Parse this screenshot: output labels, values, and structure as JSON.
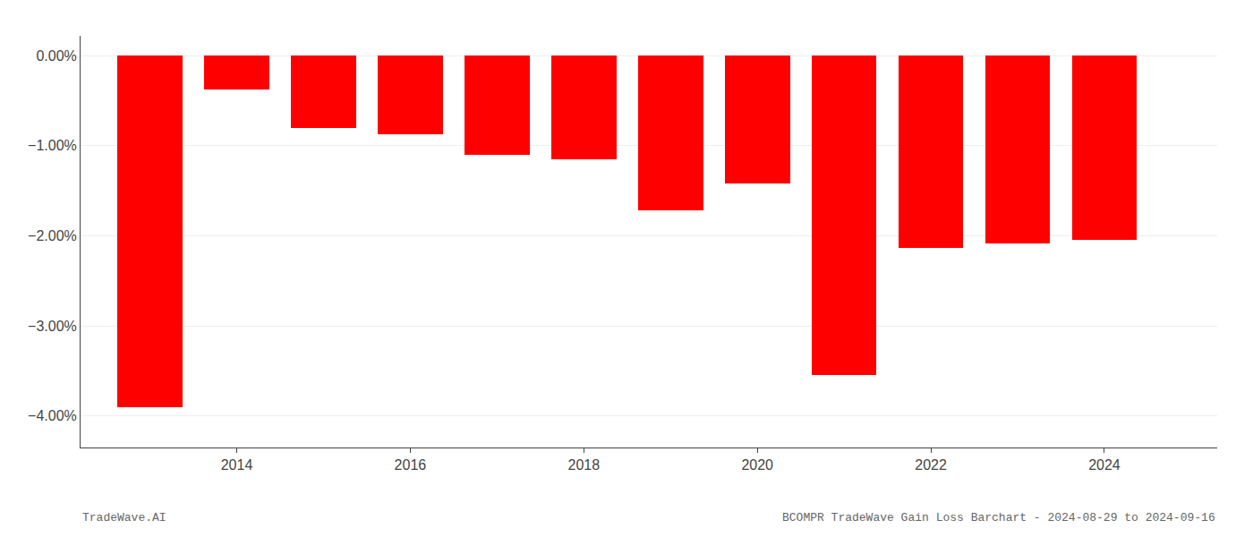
{
  "chart_data": {
    "type": "bar",
    "title": "BCOMPR TradeWave Gain Loss Barchart - 2024-08-29 to 2024-09-16",
    "annotations": [
      {
        "text": "TradeWave.AI"
      }
    ],
    "x": [
      2013,
      2014,
      2015,
      2016,
      2017,
      2018,
      2019,
      2020,
      2021,
      2022,
      2023,
      2024
    ],
    "values": [
      -3.9,
      -0.38,
      -0.8,
      -0.87,
      -1.1,
      -1.15,
      -1.72,
      -1.42,
      -3.55,
      -2.13,
      -2.08,
      -2.05
    ],
    "color": "#ff0000",
    "xlim": [
      2012.2,
      2025.3
    ],
    "xticks": [
      2014,
      2016,
      2018,
      2020,
      2022,
      2024
    ],
    "ylim": [
      -4.35,
      0.22
    ],
    "yticks": [
      {
        "value": 0.0,
        "label": "0.00%"
      },
      {
        "value": -1.0,
        "label": "−1.00%"
      },
      {
        "value": -2.0,
        "label": "−2.00%"
      },
      {
        "value": -3.0,
        "label": "−3.00%"
      },
      {
        "value": -4.0,
        "label": "−4.00%"
      }
    ],
    "grid": "y"
  }
}
